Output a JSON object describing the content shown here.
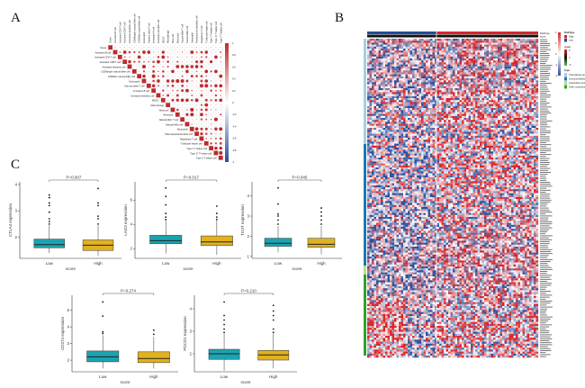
{
  "panels": {
    "a": "A",
    "b": "B",
    "c": "C"
  },
  "corr_plot": {
    "labels": [
      "Score",
      "Activated B cell",
      "Activated CD4 T cell",
      "Activated CD8 T cell",
      "Activated dendritic cell",
      "CD56bright natural killer cell",
      "CD56dim natural killer cell",
      "Eosinophil",
      "Gamma delta T cell",
      "Immature  B cell",
      "Immature dendritic cell",
      "MDSC",
      "Macrophage",
      "Mast cell",
      "Monocyte",
      "Natural killer T cell",
      "Natural killer cell",
      "Neutrophil",
      "Plasmacytoid dendritic cell",
      "Regulatory T cell",
      "T follicular helper cell",
      "Type 1 T helper cell",
      "Type 17 T helper cell",
      "Type 2 T helper cell"
    ],
    "colorbar_ticks": [
      "1",
      "0.8",
      "0.6",
      "0.4",
      "0.2",
      "0",
      "-0.2",
      "-0.4",
      "-0.6",
      "-0.8",
      "-1"
    ],
    "colors": {
      "positive": "#c0282d",
      "negative": "#2a4c9a"
    }
  },
  "heatmap": {
    "annotation_labels": [
      "RiskType",
      "score"
    ],
    "legend": {
      "scale_ticks": [
        "2",
        "1",
        "0",
        "-1",
        "-2"
      ],
      "risktype_title": "RiskType",
      "risktype": [
        {
          "label": "High",
          "color": "#d7262b"
        },
        {
          "label": "Low",
          "color": "#1f4e96"
        }
      ],
      "score_title": "score",
      "score_ticks": [
        "5",
        "0",
        "-5"
      ],
      "type_title": "Type",
      "types": [
        {
          "label": "Chemokines and receptors",
          "color": "#a6cee3"
        },
        {
          "label": "Immunoinhibitors",
          "color": "#1f78b4"
        },
        {
          "label": "Interleukins and receptors",
          "color": "#b2df8a"
        },
        {
          "label": "Other cytokines",
          "color": "#33a02c"
        }
      ]
    },
    "colors": {
      "high": "#d7262b",
      "mid": "#ffffff",
      "low": "#2c4f9e"
    }
  },
  "chart_data": [
    {
      "type": "box",
      "ylabel": "CTLA4 expression",
      "xlabel": "score",
      "categories": [
        "Low",
        "High"
      ],
      "yticks": [
        2,
        3,
        4
      ],
      "ylim": [
        1.2,
        4.1
      ],
      "pvalue": "P=0.007",
      "series": [
        {
          "q1": 1.6,
          "median": 1.72,
          "q3": 1.93,
          "min": 1.4,
          "max": 2.45,
          "outliers": [
            2.5,
            2.6,
            2.7,
            2.95,
            3.2,
            3.3,
            3.5,
            3.6
          ]
        },
        {
          "q1": 1.5,
          "median": 1.7,
          "q3": 1.9,
          "min": 1.3,
          "max": 2.45,
          "outliers": [
            2.5,
            2.7,
            2.8,
            3.2,
            3.3,
            3.85
          ]
        }
      ]
    },
    {
      "type": "box",
      "ylabel": "LAG3 expression",
      "xlabel": "score",
      "categories": [
        "Low",
        "High"
      ],
      "yticks": [
        2,
        4,
        6
      ],
      "ylim": [
        1.2,
        7.5
      ],
      "pvalue": "P=0.017",
      "series": [
        {
          "q1": 2.4,
          "median": 2.65,
          "q3": 3.1,
          "min": 1.6,
          "max": 4.3,
          "outliers": [
            4.4,
            4.6,
            4.9,
            5.6,
            6.3,
            7.0
          ]
        },
        {
          "q1": 2.25,
          "median": 2.55,
          "q3": 3.05,
          "min": 1.5,
          "max": 4.3,
          "outliers": [
            4.4,
            4.6,
            4.9,
            5.5
          ]
        }
      ]
    },
    {
      "type": "box",
      "ylabel": "TIGIT expression",
      "xlabel": "score",
      "categories": [
        "Low",
        "High"
      ],
      "yticks": [
        1,
        2,
        3,
        4
      ],
      "ylim": [
        0.9,
        4.7
      ],
      "pvalue": "P=0.045",
      "series": [
        {
          "q1": 1.5,
          "median": 1.65,
          "q3": 1.9,
          "min": 1.2,
          "max": 2.5,
          "outliers": [
            2.6,
            2.8,
            3.0,
            3.1,
            3.6,
            4.4
          ]
        },
        {
          "q1": 1.45,
          "median": 1.6,
          "q3": 1.9,
          "min": 1.1,
          "max": 2.5,
          "outliers": [
            2.6,
            2.8,
            3.0,
            3.2,
            3.4
          ]
        }
      ]
    },
    {
      "type": "box",
      "ylabel": "CD274 expression",
      "xlabel": "score",
      "categories": [
        "Low",
        "High"
      ],
      "yticks": [
        2,
        3,
        4,
        5
      ],
      "ylim": [
        1.3,
        5.9
      ],
      "pvalue": "P=0.274",
      "series": [
        {
          "q1": 1.9,
          "median": 2.2,
          "q3": 2.55,
          "min": 1.5,
          "max": 3.5,
          "outliers": [
            3.6,
            3.7,
            4.65,
            5.5
          ]
        },
        {
          "q1": 1.85,
          "median": 2.1,
          "q3": 2.5,
          "min": 1.5,
          "max": 3.4,
          "outliers": [
            3.55,
            3.8
          ]
        }
      ]
    },
    {
      "type": "box",
      "ylabel": "PDCD1 expression",
      "xlabel": "score",
      "categories": [
        "Low",
        "High"
      ],
      "yticks": [
        2,
        3,
        4
      ],
      "ylim": [
        1.2,
        4.6
      ],
      "pvalue": "P=0.210",
      "series": [
        {
          "q1": 1.75,
          "median": 2.0,
          "q3": 2.2,
          "min": 1.25,
          "max": 2.9,
          "outliers": [
            2.95,
            3.1,
            3.3,
            3.5,
            3.7,
            4.3
          ]
        },
        {
          "q1": 1.72,
          "median": 1.95,
          "q3": 2.15,
          "min": 1.35,
          "max": 2.9,
          "outliers": [
            2.95,
            3.1,
            3.5,
            3.7,
            3.9,
            4.15
          ]
        }
      ]
    }
  ],
  "box_colors": [
    "#1ba3b0",
    "#e0b120"
  ]
}
